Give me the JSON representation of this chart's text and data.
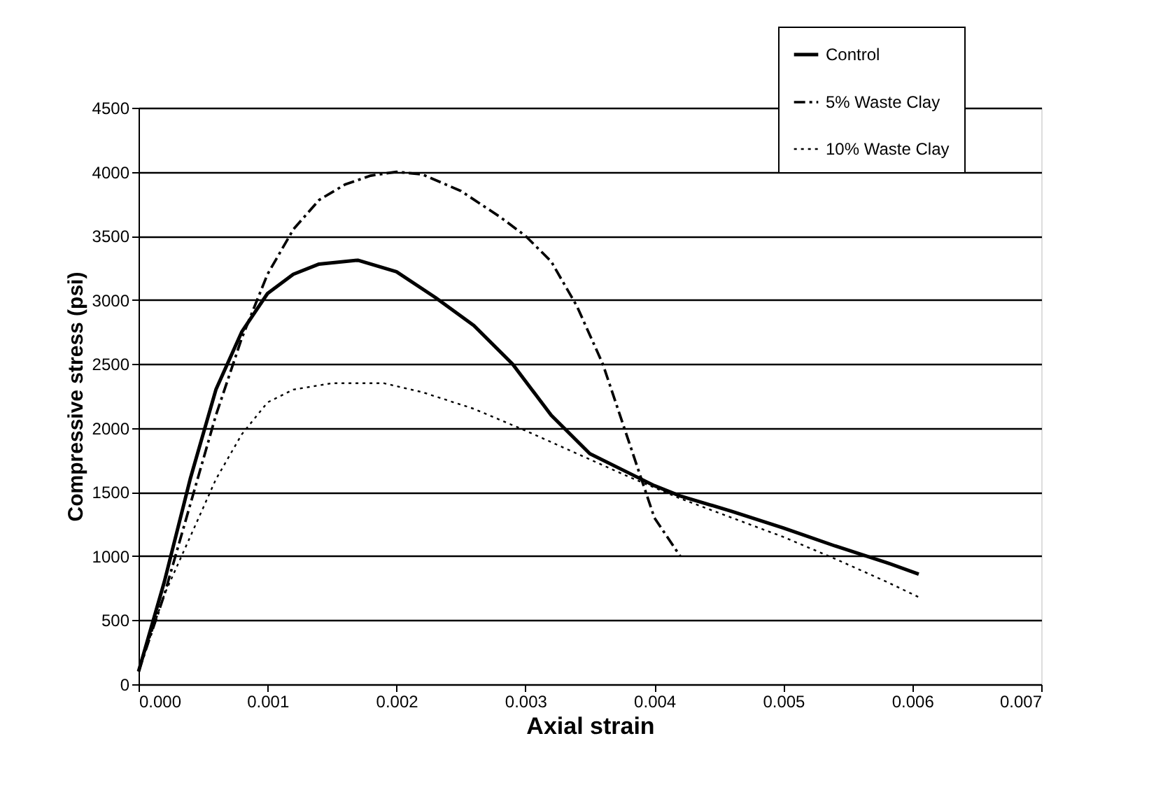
{
  "chart_data": {
    "type": "line",
    "xlabel": "Axial strain",
    "ylabel": "Compressive stress (psi)",
    "xlim": [
      0,
      0.007
    ],
    "xticks": [
      {
        "value": 0,
        "label": "0.000"
      },
      {
        "value": 0.001,
        "label": "0.001"
      },
      {
        "value": 0.002,
        "label": "0.002"
      },
      {
        "value": 0.003,
        "label": "0.003"
      },
      {
        "value": 0.004,
        "label": "0.004"
      },
      {
        "value": 0.005,
        "label": "0.005"
      },
      {
        "value": 0.006,
        "label": "0.006"
      },
      {
        "value": 0.007,
        "label": "0.007"
      }
    ],
    "ylim": [
      0,
      4500
    ],
    "yticks": [
      0,
      500,
      1000,
      1500,
      2000,
      2500,
      3000,
      3500,
      4000,
      4500
    ],
    "grid": "y",
    "legend": "top right",
    "marker": "none",
    "series": [
      {
        "name": "Control",
        "color": "#000000",
        "line_style": "solid",
        "x": [
          0,
          0.0002,
          0.0004,
          0.0006,
          0.0008,
          0.001,
          0.0012,
          0.0014,
          0.0017,
          0.002,
          0.0023,
          0.0026,
          0.0029,
          0.0032,
          0.0035,
          0.0038,
          0.004,
          0.0042,
          0.0046,
          0.005,
          0.0054,
          0.0058,
          0.00605
        ],
        "values": [
          100,
          800,
          1600,
          2300,
          2750,
          3050,
          3200,
          3280,
          3310,
          3220,
          3020,
          2800,
          2500,
          2100,
          1800,
          1650,
          1550,
          1470,
          1350,
          1220,
          1080,
          950,
          860
        ]
      },
      {
        "name": "5% Waste Clay",
        "color": "#000000",
        "line_style": "dashed",
        "x": [
          0,
          0.0002,
          0.0004,
          0.0006,
          0.0008,
          0.001,
          0.0012,
          0.0014,
          0.0016,
          0.0018,
          0.002,
          0.0022,
          0.0025,
          0.0028,
          0.003,
          0.0032,
          0.0034,
          0.0036,
          0.0038,
          0.004,
          0.0042
        ],
        "values": [
          100,
          700,
          1400,
          2100,
          2700,
          3200,
          3550,
          3780,
          3900,
          3970,
          4000,
          3980,
          3850,
          3650,
          3500,
          3300,
          2950,
          2500,
          1900,
          1300,
          1000
        ]
      },
      {
        "name": "10% Waste Clay",
        "color": "#000000",
        "line_style": "dotted",
        "x": [
          0,
          0.0002,
          0.0004,
          0.0006,
          0.0008,
          0.001,
          0.0012,
          0.0015,
          0.0019,
          0.0022,
          0.0026,
          0.003,
          0.0034,
          0.0038,
          0.0042,
          0.0046,
          0.005,
          0.0054,
          0.0058,
          0.00605
        ],
        "values": [
          100,
          700,
          1150,
          1600,
          1950,
          2200,
          2300,
          2350,
          2350,
          2280,
          2150,
          1980,
          1800,
          1620,
          1450,
          1300,
          1150,
          980,
          800,
          680
        ]
      }
    ]
  }
}
